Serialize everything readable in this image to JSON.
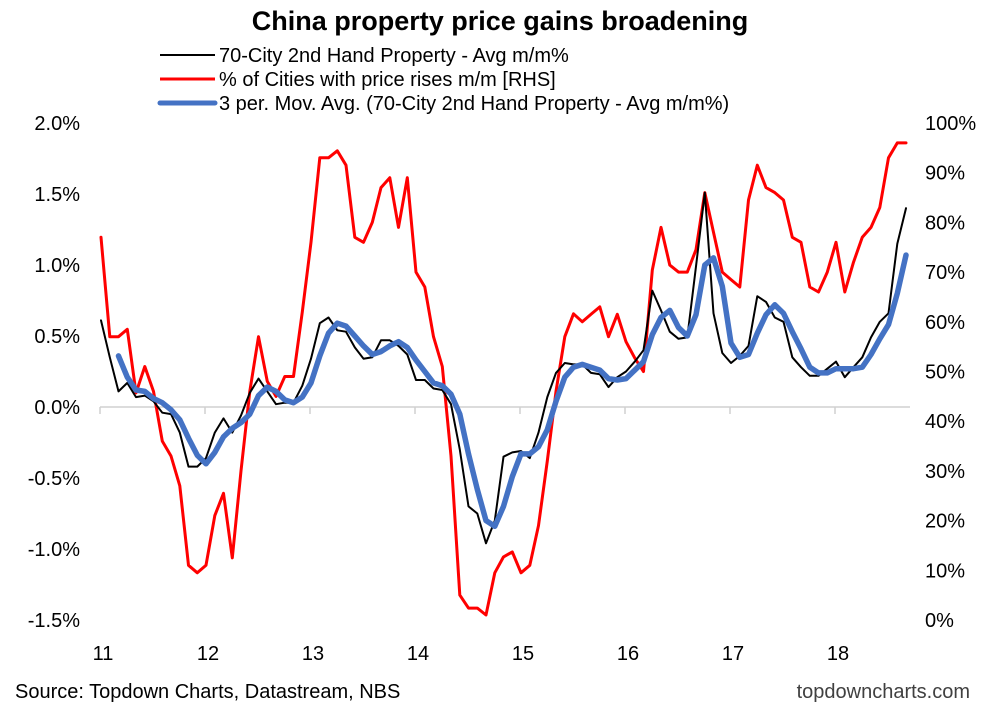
{
  "chart_data": {
    "type": "line",
    "title": "China property price gains broadening",
    "x_start": "2011-01",
    "x_frequency": "monthly",
    "x_tick_labels": [
      "11",
      "12",
      "13",
      "14",
      "15",
      "16",
      "17",
      "18"
    ],
    "left_axis": {
      "range": [
        -1.5,
        2.0
      ],
      "ticks": [
        "2.0%",
        "1.5%",
        "1.0%",
        "0.5%",
        "0.0%",
        "-0.5%",
        "-1.0%",
        "-1.5%"
      ]
    },
    "right_axis": {
      "range": [
        0,
        100
      ],
      "ticks": [
        "100%",
        "90%",
        "80%",
        "70%",
        "60%",
        "50%",
        "40%",
        "30%",
        "20%",
        "10%",
        "0%"
      ]
    },
    "grid": false,
    "legend_position": "top",
    "series": [
      {
        "name": "70-City 2nd Hand Property - Avg m/m%",
        "axis": "left",
        "color": "#000000",
        "start_index": 0,
        "values": [
          0.61,
          0.35,
          0.11,
          0.17,
          0.07,
          0.08,
          0.04,
          -0.04,
          -0.05,
          -0.18,
          -0.42,
          -0.42,
          -0.36,
          -0.18,
          -0.08,
          -0.18,
          -0.06,
          0.1,
          0.2,
          0.11,
          0.02,
          0.03,
          0.03,
          0.15,
          0.34,
          0.59,
          0.63,
          0.54,
          0.53,
          0.42,
          0.34,
          0.35,
          0.47,
          0.47,
          0.43,
          0.37,
          0.19,
          0.19,
          0.13,
          0.12,
          0.02,
          -0.3,
          -0.7,
          -0.75,
          -0.96,
          -0.8,
          -0.35,
          -0.32,
          -0.31,
          -0.36,
          -0.18,
          0.07,
          0.24,
          0.31,
          0.3,
          0.3,
          0.24,
          0.23,
          0.14,
          0.21,
          0.25,
          0.32,
          0.4,
          0.82,
          0.68,
          0.53,
          0.48,
          0.49,
          0.99,
          1.51,
          0.66,
          0.38,
          0.31,
          0.36,
          0.43,
          0.78,
          0.74,
          0.63,
          0.6,
          0.35,
          0.28,
          0.22,
          0.22,
          0.27,
          0.32,
          0.21,
          0.28,
          0.35,
          0.49,
          0.6,
          0.66,
          1.15,
          1.4
        ]
      },
      {
        "name": "% of Cities with price rises m/m [RHS]",
        "axis": "right",
        "color": "#ff0000",
        "start_index": 0,
        "values": [
          77,
          57,
          57,
          58.5,
          45.7,
          51,
          46,
          36,
          33,
          27,
          11,
          9.5,
          11,
          21,
          25.5,
          12.5,
          30,
          46,
          57,
          48,
          45,
          49,
          49,
          62,
          76,
          93,
          93,
          94.4,
          91.5,
          77,
          76,
          80,
          87,
          89,
          79,
          89,
          70,
          67,
          57,
          51,
          33,
          5,
          2.4,
          2.4,
          1,
          9.5,
          12.7,
          13.7,
          9.5,
          11,
          19,
          32,
          46,
          57,
          61.6,
          60,
          61.5,
          63,
          57,
          61.5,
          56,
          52.7,
          50,
          70.4,
          79,
          71.4,
          70,
          70,
          74.5,
          86,
          78,
          70,
          68.5,
          67,
          84.5,
          91.5,
          87,
          86,
          84.5,
          77,
          76,
          67,
          66,
          70,
          76,
          66,
          72,
          77,
          79,
          83,
          93,
          96,
          96
        ]
      },
      {
        "name": "3 per. Mov. Avg. (70-City 2nd Hand Property - Avg m/m%)",
        "axis": "left",
        "color": "#4472c4",
        "start_index": 2,
        "values": [
          0.36,
          0.21,
          0.12,
          0.11,
          0.06,
          0.03,
          -0.02,
          -0.09,
          -0.22,
          -0.34,
          -0.4,
          -0.32,
          -0.21,
          -0.15,
          -0.11,
          -0.05,
          0.08,
          0.14,
          0.11,
          0.05,
          0.03,
          0.07,
          0.17,
          0.36,
          0.52,
          0.59,
          0.57,
          0.5,
          0.43,
          0.37,
          0.39,
          0.43,
          0.46,
          0.42,
          0.33,
          0.25,
          0.17,
          0.15,
          0.09,
          -0.05,
          -0.33,
          -0.58,
          -0.8,
          -0.84,
          -0.7,
          -0.49,
          -0.33,
          -0.33,
          -0.28,
          -0.16,
          0.04,
          0.21,
          0.28,
          0.3,
          0.28,
          0.26,
          0.2,
          0.19,
          0.2,
          0.26,
          0.32,
          0.51,
          0.63,
          0.68,
          0.56,
          0.5,
          0.65,
          1.0,
          1.05,
          0.85,
          0.45,
          0.35,
          0.37,
          0.52,
          0.65,
          0.72,
          0.66,
          0.53,
          0.41,
          0.28,
          0.24,
          0.24,
          0.27,
          0.27,
          0.27,
          0.28,
          0.37,
          0.48,
          0.58,
          0.8,
          1.07
        ]
      }
    ]
  },
  "footer": {
    "source": "Source: Topdown Charts, Datastream, NBS",
    "brand": "topdowncharts.com"
  }
}
